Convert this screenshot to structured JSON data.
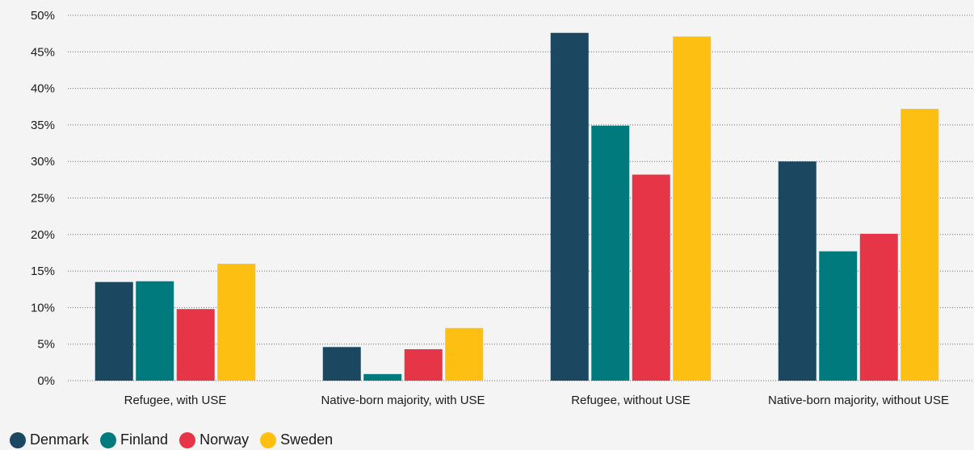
{
  "chart_data": {
    "type": "bar",
    "title": "",
    "xlabel": "",
    "ylabel": "",
    "ylim": [
      0,
      50
    ],
    "yticks": [
      "0%",
      "5%",
      "10%",
      "15%",
      "20%",
      "25%",
      "30%",
      "35%",
      "40%",
      "45%",
      "50%"
    ],
    "grid": true,
    "legend_position": "bottom-left",
    "categories": [
      "Refugee, with USE",
      "Native-born majority, with USE",
      "Refugee, without USE",
      "Native-born majority, without USE"
    ],
    "series": [
      {
        "name": "Denmark",
        "color": "#1c4760",
        "values": [
          13.5,
          4.6,
          47.6,
          30.0
        ]
      },
      {
        "name": "Finland",
        "color": "#007a7d",
        "values": [
          13.6,
          0.9,
          34.9,
          17.7
        ]
      },
      {
        "name": "Norway",
        "color": "#e63547",
        "values": [
          9.8,
          4.3,
          28.2,
          20.1
        ]
      },
      {
        "name": "Sweden",
        "color": "#fcbf12",
        "values": [
          16.0,
          7.2,
          47.1,
          37.2
        ]
      }
    ]
  }
}
